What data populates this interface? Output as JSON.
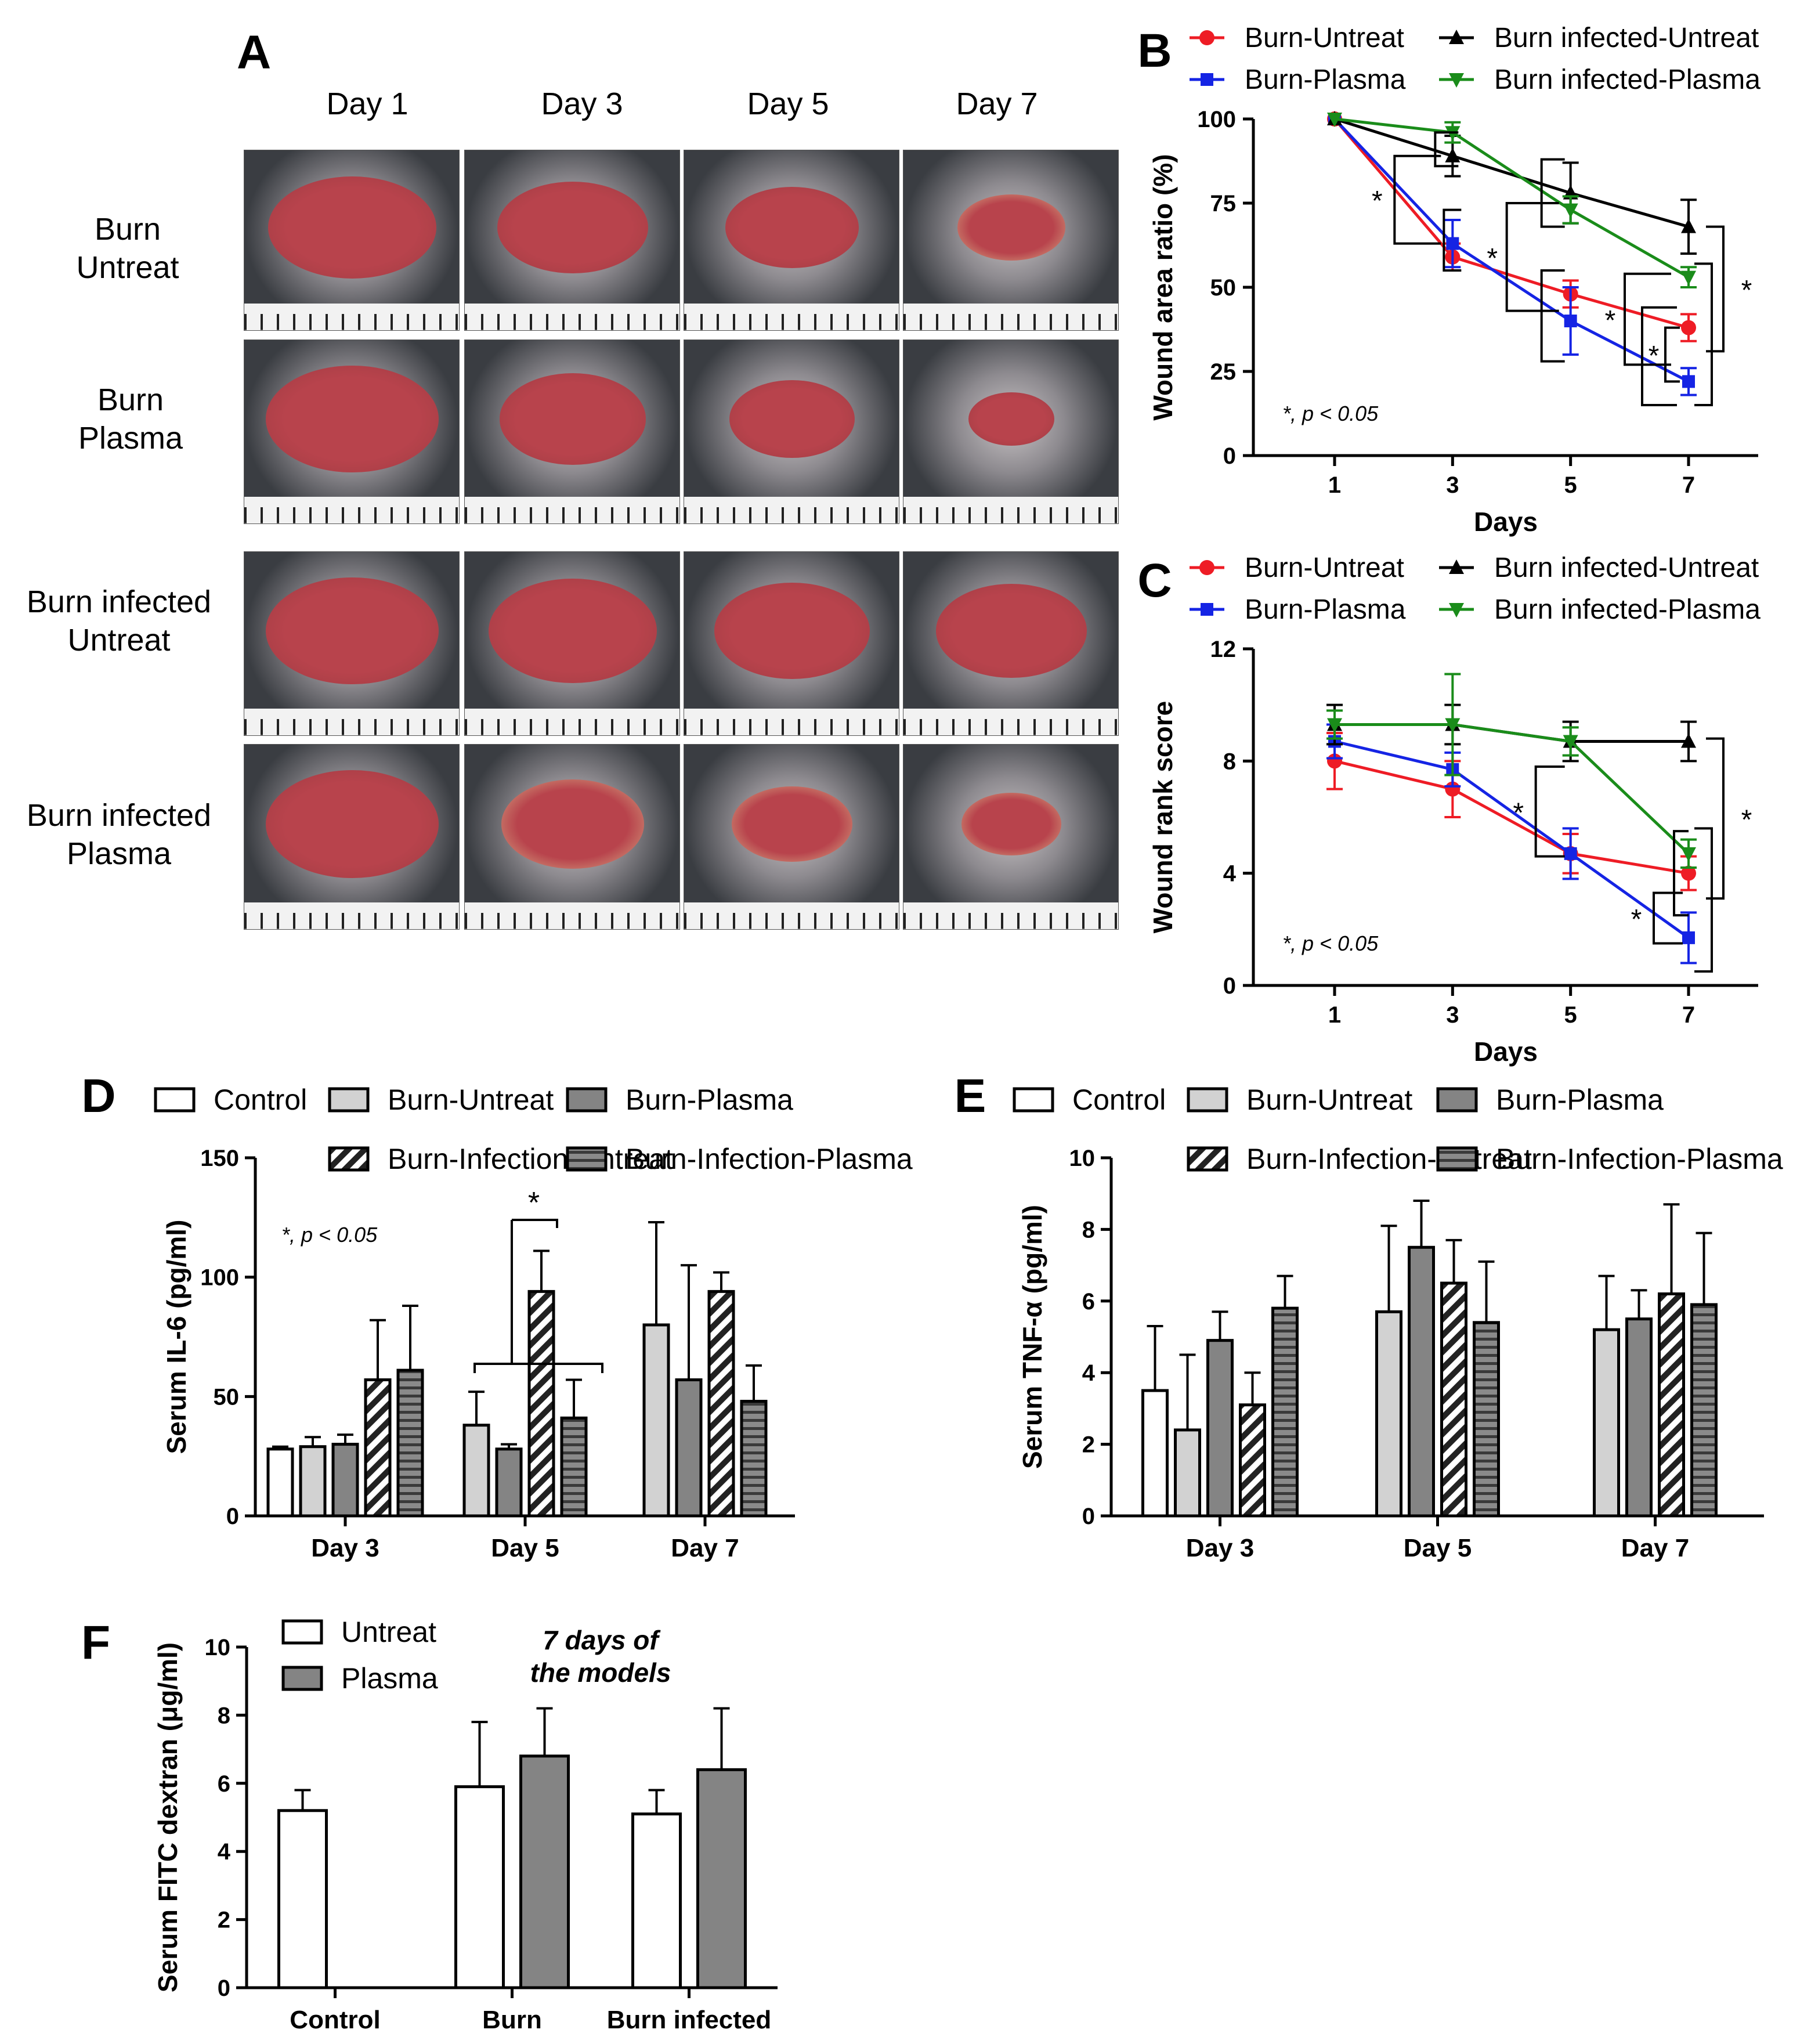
{
  "panel_A": {
    "label": "A",
    "days": [
      "Day 1",
      "Day 3",
      "Day 5",
      "Day 7"
    ],
    "groups": [
      {
        "line1": "Burn",
        "line2": "Untreat"
      },
      {
        "line1": "Burn",
        "line2": "Plasma"
      },
      {
        "line1": "Burn infected",
        "line2": "Untreat"
      },
      {
        "line1": "Burn infected",
        "line2": "Plasma"
      }
    ],
    "colors": {
      "skin": "#3a3d42",
      "wound": "#b8434c",
      "healed": "#d9b48a",
      "ruler": "#f2f2f2"
    }
  },
  "chart_data": [
    {
      "id": "B",
      "type": "line",
      "x": [
        1,
        3,
        5,
        7
      ],
      "xlabel": "Days",
      "ylabel": "Wound area ratio (%)",
      "ylim": [
        0,
        100
      ],
      "yticks": [
        0,
        25,
        50,
        75,
        100
      ],
      "annotation": "*, p < 0.05",
      "series": [
        {
          "name": "Burn-Untreat",
          "color": "#ee1c25",
          "marker": "circle",
          "values": [
            100,
            59,
            48,
            38
          ],
          "err": [
            0,
            4,
            4,
            4
          ]
        },
        {
          "name": "Burn-Plasma",
          "color": "#1524e4",
          "marker": "square",
          "values": [
            100,
            63,
            40,
            22
          ],
          "err": [
            0,
            7,
            10,
            4
          ]
        },
        {
          "name": "Burn infected-Untreat",
          "color": "#000000",
          "marker": "triangle-up",
          "values": [
            100,
            89,
            78,
            68
          ],
          "err": [
            0,
            6,
            9,
            8
          ]
        },
        {
          "name": "Burn infected-Plasma",
          "color": "#1a8c1a",
          "marker": "triangle-down",
          "values": [
            100,
            96,
            73,
            53
          ],
          "err": [
            0,
            3,
            4,
            3
          ]
        }
      ]
    },
    {
      "id": "C",
      "type": "line",
      "x": [
        1,
        3,
        5,
        7
      ],
      "xlabel": "Days",
      "ylabel": "Wound rank score",
      "ylim": [
        0,
        12
      ],
      "yticks": [
        0,
        4,
        8,
        12
      ],
      "annotation": "*, p < 0.05",
      "series": [
        {
          "name": "Burn-Untreat",
          "color": "#ee1c25",
          "marker": "circle",
          "values": [
            8,
            7,
            4.7,
            4
          ],
          "err": [
            1,
            1,
            0.7,
            0.6
          ]
        },
        {
          "name": "Burn-Plasma",
          "color": "#1524e4",
          "marker": "square",
          "values": [
            8.7,
            7.7,
            4.7,
            1.7
          ],
          "err": [
            0.6,
            0.6,
            0.9,
            0.9
          ]
        },
        {
          "name": "Burn infected-Untreat",
          "color": "#000000",
          "marker": "triangle-up",
          "values": [
            9.3,
            9.3,
            8.7,
            8.7
          ],
          "err": [
            0.7,
            0.7,
            0.7,
            0.7
          ]
        },
        {
          "name": "Burn infected-Plasma",
          "color": "#1a8c1a",
          "marker": "triangle-down",
          "values": [
            9.3,
            9.3,
            8.7,
            4.7
          ],
          "err": [
            0.5,
            1.8,
            0.5,
            0.5
          ]
        }
      ]
    },
    {
      "id": "D",
      "type": "bar",
      "categories": [
        "Day 3",
        "Day 5",
        "Day 7"
      ],
      "ylabel": "Serum IL-6 (pg/ml)",
      "ylim": [
        0,
        150
      ],
      "yticks": [
        0,
        50,
        100,
        150
      ],
      "annotation": "*, p < 0.05",
      "sig_marker": "*",
      "series": [
        {
          "name": "Control",
          "pattern": "white",
          "values": [
            28,
            null,
            null
          ],
          "err": [
            1,
            null,
            null
          ]
        },
        {
          "name": "Burn-Untreat",
          "pattern": "light",
          "values": [
            29,
            38,
            80
          ],
          "err": [
            4,
            14,
            43
          ]
        },
        {
          "name": "Burn-Plasma",
          "pattern": "dark",
          "values": [
            30,
            28,
            57
          ],
          "err": [
            4,
            2,
            48
          ]
        },
        {
          "name": "Burn-Infection-Untreat",
          "pattern": "diag",
          "values": [
            57,
            94,
            94
          ],
          "err": [
            25,
            17,
            8
          ]
        },
        {
          "name": "Burn-Infection-Plasma",
          "pattern": "horiz",
          "values": [
            61,
            41,
            48
          ],
          "err": [
            27,
            16,
            15
          ]
        }
      ]
    },
    {
      "id": "E",
      "type": "bar",
      "categories": [
        "Day 3",
        "Day 5",
        "Day 7"
      ],
      "ylabel": "Serum TNF-α (pg/ml)",
      "ylim": [
        0,
        10
      ],
      "yticks": [
        0,
        2,
        4,
        6,
        8,
        10
      ],
      "series": [
        {
          "name": "Control",
          "pattern": "white",
          "values": [
            3.5,
            null,
            null
          ],
          "err": [
            1.8,
            null,
            null
          ]
        },
        {
          "name": "Burn-Untreat",
          "pattern": "light",
          "values": [
            2.4,
            5.7,
            5.2
          ],
          "err": [
            2.1,
            2.4,
            1.5
          ]
        },
        {
          "name": "Burn-Plasma",
          "pattern": "dark",
          "values": [
            4.9,
            7.5,
            5.5
          ],
          "err": [
            0.8,
            1.3,
            0.8
          ]
        },
        {
          "name": "Burn-Infection-Untreat",
          "pattern": "diag",
          "values": [
            3.1,
            6.5,
            6.2
          ],
          "err": [
            0.9,
            1.2,
            2.5
          ]
        },
        {
          "name": "Burn-Infection-Plasma",
          "pattern": "horiz",
          "values": [
            5.8,
            5.4,
            5.9
          ],
          "err": [
            0.9,
            1.7,
            2
          ]
        }
      ]
    },
    {
      "id": "F",
      "type": "bar",
      "categories": [
        "Control",
        "Burn",
        "Burn infected"
      ],
      "ylabel": "Serum FITC dextran (μg/ml)",
      "ylim": [
        0,
        10
      ],
      "yticks": [
        0,
        2,
        4,
        6,
        8,
        10
      ],
      "annotation_line1": "7 days of",
      "annotation_line2": "the models",
      "series": [
        {
          "name": "Untreat",
          "pattern": "white",
          "values": [
            5.2,
            5.9,
            5.1
          ],
          "err": [
            0.6,
            1.9,
            0.7
          ]
        },
        {
          "name": "Plasma",
          "pattern": "dark",
          "values": [
            null,
            6.8,
            6.4
          ],
          "err": [
            null,
            1.4,
            1.8
          ]
        }
      ]
    }
  ]
}
